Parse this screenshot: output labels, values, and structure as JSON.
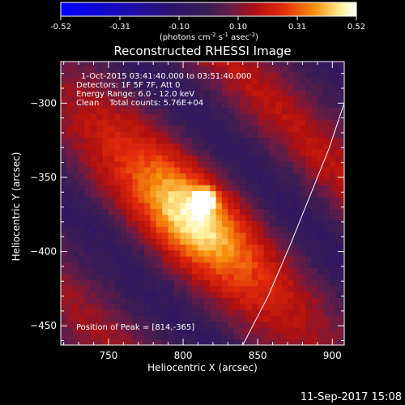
{
  "colorbar": {
    "ticks": [
      "-0.52",
      "-0.31",
      "-0.10",
      "0.10",
      "0.31",
      "0.52"
    ],
    "units_prefix": "(photons cm",
    "units_exp1": "-2",
    "units_mid": " s",
    "units_exp2": "-1",
    "units_mid2": " asec",
    "units_exp3": "-2",
    "units_suffix": ")",
    "colors": [
      "#0000ff",
      "#1a0bb0",
      "#2a136b",
      "#3a1d53",
      "#6a1c45",
      "#b01010",
      "#e32a0b",
      "#f7900e",
      "#fff2a0",
      "#ffffff"
    ]
  },
  "annotations": {
    "time": "1-Oct-2015 03:41:40.000 to 03:51:40.000",
    "detectors": "Detectors: 1F 5F 7F, Att 0",
    "energy": "Energy Range: 6.0 - 12.0 keV",
    "clean": "Clean    Total counts: 5.76E+04",
    "peak": "Position of Peak = [814,-365]"
  },
  "footer": {
    "timestamp": "11-Sep-2017 15:08"
  },
  "chart_data": {
    "type": "heatmap",
    "title": "Reconstructed RHESSI Image",
    "xlabel": "Heliocentric X (arcsec)",
    "ylabel": "Heliocentric Y (arcsec)",
    "xlim": [
      718,
      908
    ],
    "ylim": [
      -463,
      -272
    ],
    "x_ticks": [
      750,
      800,
      850,
      900
    ],
    "y_ticks": [
      -300,
      -350,
      -400,
      -450
    ],
    "peak": {
      "x": 814,
      "y": -365,
      "value": 0.52
    },
    "source": {
      "x": 806,
      "y": -377
    },
    "limb_points": [
      [
        840,
        -463
      ],
      [
        857,
        -430
      ],
      [
        872,
        -395
      ],
      [
        886,
        -360
      ],
      [
        898,
        -330
      ],
      [
        908,
        -300
      ]
    ],
    "colormap": "blue-black-red-yellow-white",
    "value_range": [
      -0.52,
      0.52
    ]
  }
}
